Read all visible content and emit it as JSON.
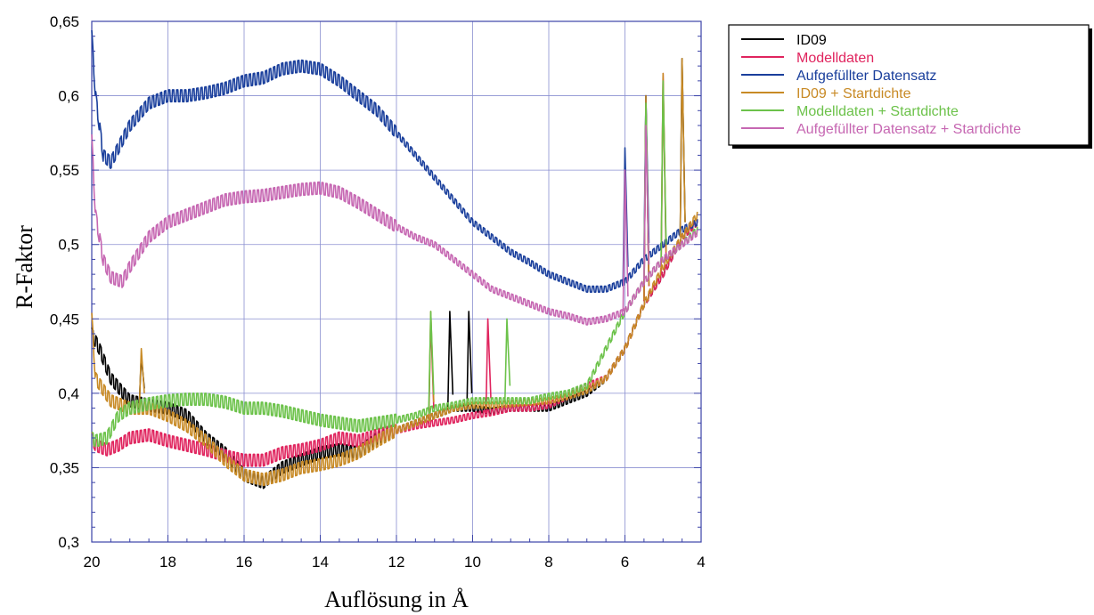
{
  "chart_data": {
    "type": "line",
    "title": "",
    "xlabel": "Auflösung in Å",
    "ylabel": "R-Faktor",
    "xlim": [
      20,
      4
    ],
    "ylim": [
      0.3,
      0.65
    ],
    "x_reversed": true,
    "grid": true,
    "legend_position": "top-right",
    "x_ticks": [
      "20",
      "18",
      "16",
      "14",
      "12",
      "10",
      "8",
      "6",
      "4"
    ],
    "y_ticks": [
      "0,3",
      "0,35",
      "0,4",
      "0,45",
      "0,5",
      "0,55",
      "0,6",
      "0,65"
    ],
    "series": [
      {
        "name": "ID09",
        "color": "#000000",
        "x": [
          20,
          19.8,
          19.5,
          19,
          18.5,
          18,
          17.5,
          17,
          16.5,
          16,
          15.5,
          15,
          14.5,
          14,
          13.5,
          13,
          12.5,
          12,
          11.5,
          11,
          10.5,
          10,
          9.5,
          9,
          8.5,
          8,
          7.5,
          7,
          6.5,
          6,
          5.5,
          5,
          4.5,
          4.1
        ],
        "y": [
          0.44,
          0.43,
          0.41,
          0.395,
          0.392,
          0.39,
          0.385,
          0.37,
          0.36,
          0.345,
          0.34,
          0.35,
          0.355,
          0.36,
          0.362,
          0.36,
          0.37,
          0.375,
          0.38,
          0.385,
          0.39,
          0.39,
          0.388,
          0.39,
          0.39,
          0.39,
          0.395,
          0.4,
          0.41,
          0.43,
          0.46,
          0.48,
          0.505,
          0.515
        ],
        "spikes": [
          {
            "x": 18.7,
            "y": 0.425
          },
          {
            "x": 10.6,
            "y": 0.455
          },
          {
            "x": 10.1,
            "y": 0.455
          },
          {
            "x": 5.45,
            "y": 0.6
          },
          {
            "x": 4.5,
            "y": 0.625
          }
        ]
      },
      {
        "name": "Modelldaten",
        "color": "#e0245e",
        "x": [
          20,
          19.9,
          19.6,
          19.3,
          19,
          18.5,
          18,
          17.5,
          17,
          16.5,
          16,
          15.5,
          15,
          14.5,
          14,
          13.5,
          13,
          12.5,
          12,
          11.5,
          11,
          10.5,
          10,
          9.5,
          9,
          8.5,
          8,
          7.5,
          7,
          6.5,
          6,
          5.5,
          5,
          4.5,
          4.1
        ],
        "y": [
          0.37,
          0.365,
          0.362,
          0.365,
          0.37,
          0.372,
          0.368,
          0.365,
          0.362,
          0.358,
          0.355,
          0.355,
          0.36,
          0.362,
          0.365,
          0.37,
          0.368,
          0.372,
          0.375,
          0.378,
          0.38,
          0.382,
          0.385,
          0.387,
          0.39,
          0.39,
          0.392,
          0.398,
          0.405,
          0.41,
          0.43,
          0.46,
          0.48,
          0.505,
          0.515
        ],
        "spikes": [
          {
            "x": 11.1,
            "y": 0.45
          },
          {
            "x": 9.6,
            "y": 0.45
          },
          {
            "x": 5.45,
            "y": 0.595
          },
          {
            "x": 5,
            "y": 0.615
          }
        ]
      },
      {
        "name": "Aufgefüllter Datensatz",
        "color": "#1a3f9c",
        "x": [
          20,
          19.9,
          19.7,
          19.5,
          19.2,
          19,
          18.5,
          18,
          17.5,
          17,
          16.5,
          16,
          15.5,
          15,
          14.5,
          14,
          13.5,
          13,
          12.5,
          12,
          11.5,
          11,
          10.5,
          10,
          9.5,
          9,
          8.5,
          8,
          7.5,
          7,
          6.5,
          6,
          5.5,
          5,
          4.5,
          4.1
        ],
        "y": [
          0.64,
          0.6,
          0.56,
          0.555,
          0.57,
          0.58,
          0.595,
          0.6,
          0.6,
          0.602,
          0.605,
          0.61,
          0.612,
          0.618,
          0.62,
          0.618,
          0.61,
          0.6,
          0.59,
          0.575,
          0.56,
          0.545,
          0.53,
          0.515,
          0.505,
          0.495,
          0.488,
          0.48,
          0.475,
          0.47,
          0.47,
          0.475,
          0.49,
          0.5,
          0.51,
          0.515
        ],
        "spikes": [
          {
            "x": 6.0,
            "y": 0.565
          },
          {
            "x": 5.45,
            "y": 0.6
          }
        ]
      },
      {
        "name": "ID09 + Startdichte",
        "color": "#c88a25",
        "x": [
          20,
          19.9,
          19.5,
          19,
          18.5,
          18,
          17.5,
          17,
          16.5,
          16,
          15.5,
          15,
          14.5,
          14,
          13.5,
          13,
          12.5,
          12,
          11.5,
          11,
          10.5,
          10,
          9.5,
          9,
          8.5,
          8,
          7.5,
          7,
          6.5,
          6,
          5.5,
          5,
          4.5,
          4.1
        ],
        "y": [
          0.45,
          0.41,
          0.395,
          0.39,
          0.39,
          0.385,
          0.378,
          0.368,
          0.355,
          0.345,
          0.342,
          0.345,
          0.35,
          0.352,
          0.355,
          0.36,
          0.368,
          0.375,
          0.38,
          0.385,
          0.39,
          0.392,
          0.392,
          0.393,
          0.394,
          0.395,
          0.398,
          0.402,
          0.41,
          0.43,
          0.46,
          0.485,
          0.505,
          0.52
        ],
        "spikes": [
          {
            "x": 18.7,
            "y": 0.43
          },
          {
            "x": 11.1,
            "y": 0.455
          },
          {
            "x": 5.45,
            "y": 0.6
          },
          {
            "x": 5.0,
            "y": 0.615
          },
          {
            "x": 4.5,
            "y": 0.625
          }
        ]
      },
      {
        "name": "Modelldaten + Startdichte",
        "color": "#6cc24a",
        "x": [
          20,
          19.9,
          19.6,
          19.3,
          19,
          18.5,
          18,
          17.5,
          17,
          16.5,
          16,
          15.5,
          15,
          14.5,
          14,
          13.5,
          13,
          12.5,
          12,
          11.5,
          11,
          10.5,
          10,
          9.5,
          9,
          8.5,
          8,
          7.5,
          7,
          6.5,
          6,
          5.5,
          5,
          4.5,
          4.1
        ],
        "y": [
          0.37,
          0.368,
          0.37,
          0.385,
          0.39,
          0.393,
          0.395,
          0.396,
          0.396,
          0.394,
          0.39,
          0.39,
          0.388,
          0.385,
          0.382,
          0.38,
          0.378,
          0.38,
          0.382,
          0.385,
          0.39,
          0.392,
          0.395,
          0.395,
          0.395,
          0.395,
          0.398,
          0.4,
          0.405,
          0.43,
          0.455,
          0.475,
          0.49,
          0.5,
          0.51
        ],
        "spikes": [
          {
            "x": 11.1,
            "y": 0.455
          },
          {
            "x": 9.1,
            "y": 0.45
          },
          {
            "x": 5.45,
            "y": 0.595
          },
          {
            "x": 5.0,
            "y": 0.61
          }
        ]
      },
      {
        "name": "Aufgefüllter Datensatz + Startdichte",
        "color": "#c667b2",
        "x": [
          20,
          19.9,
          19.7,
          19.5,
          19.2,
          19,
          18.5,
          18,
          17.5,
          17,
          16.5,
          16,
          15.5,
          15,
          14.5,
          14,
          13.5,
          13,
          12.5,
          12,
          11.5,
          11,
          10.5,
          10,
          9.5,
          9,
          8.5,
          8,
          7.5,
          7,
          6.5,
          6,
          5.5,
          5,
          4.5,
          4.1
        ],
        "y": [
          0.57,
          0.52,
          0.49,
          0.478,
          0.475,
          0.485,
          0.505,
          0.515,
          0.52,
          0.525,
          0.53,
          0.532,
          0.533,
          0.535,
          0.537,
          0.538,
          0.535,
          0.528,
          0.52,
          0.512,
          0.505,
          0.5,
          0.49,
          0.48,
          0.47,
          0.465,
          0.46,
          0.455,
          0.452,
          0.448,
          0.45,
          0.455,
          0.475,
          0.49,
          0.5,
          0.508
        ],
        "spikes": [
          {
            "x": 6.0,
            "y": 0.55
          },
          {
            "x": 5.45,
            "y": 0.58
          }
        ]
      }
    ]
  }
}
